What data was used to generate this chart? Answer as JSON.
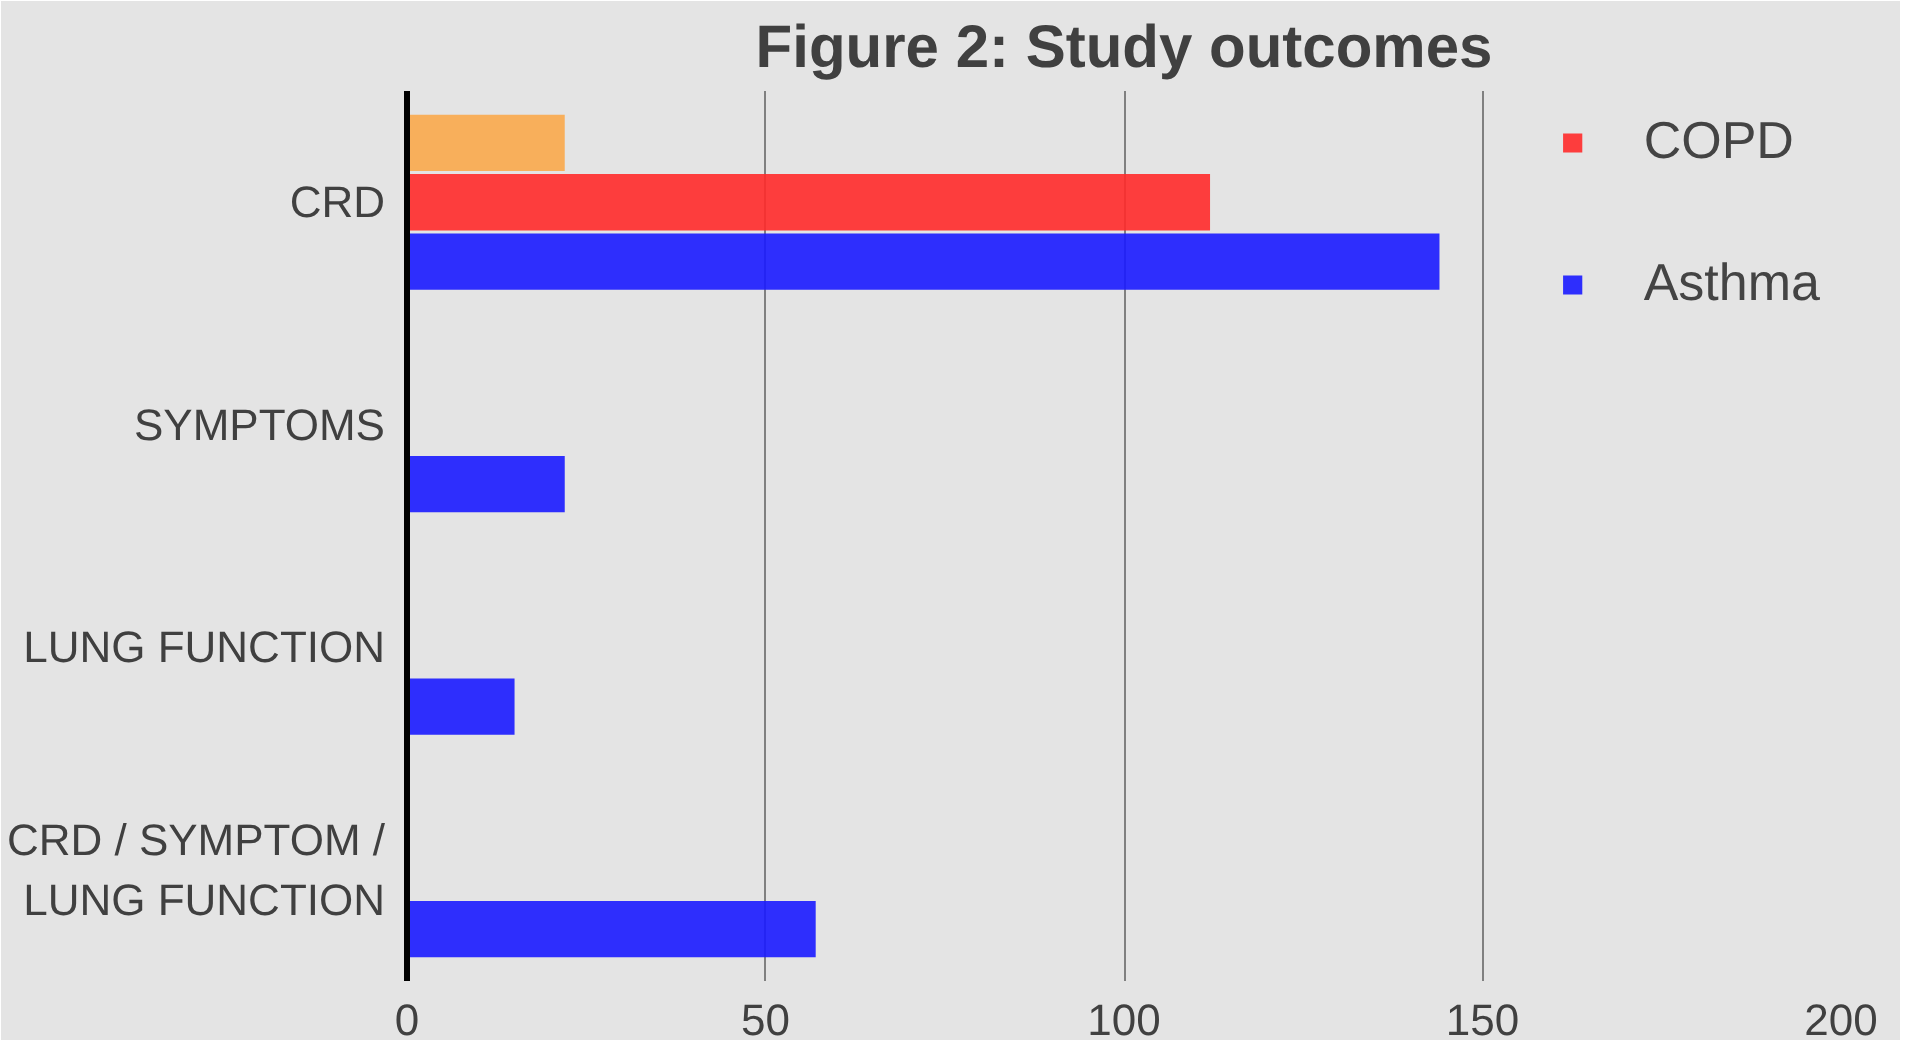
{
  "chart_data": {
    "type": "bar",
    "orientation": "horizontal",
    "title": "Figure 2: Study outcomes",
    "categories": [
      "CRD",
      "SYMPTOMS",
      "LUNG FUNCTION",
      "CRD / SYMPTOM / LUNG FUNCTION"
    ],
    "series": [
      {
        "color": "#f9a94b",
        "values": [
          22,
          null,
          null,
          null
        ]
      },
      {
        "name": "COPD",
        "color": "#ff2a2a",
        "values": [
          112,
          null,
          null,
          null
        ]
      },
      {
        "name": "Asthma",
        "color": "#1a1aff",
        "values": [
          144,
          22,
          15,
          57
        ]
      }
    ],
    "xlim": [
      0,
      200
    ],
    "xticks": [
      0,
      50,
      100,
      150,
      200
    ],
    "grid": "x",
    "legend": "top right"
  }
}
